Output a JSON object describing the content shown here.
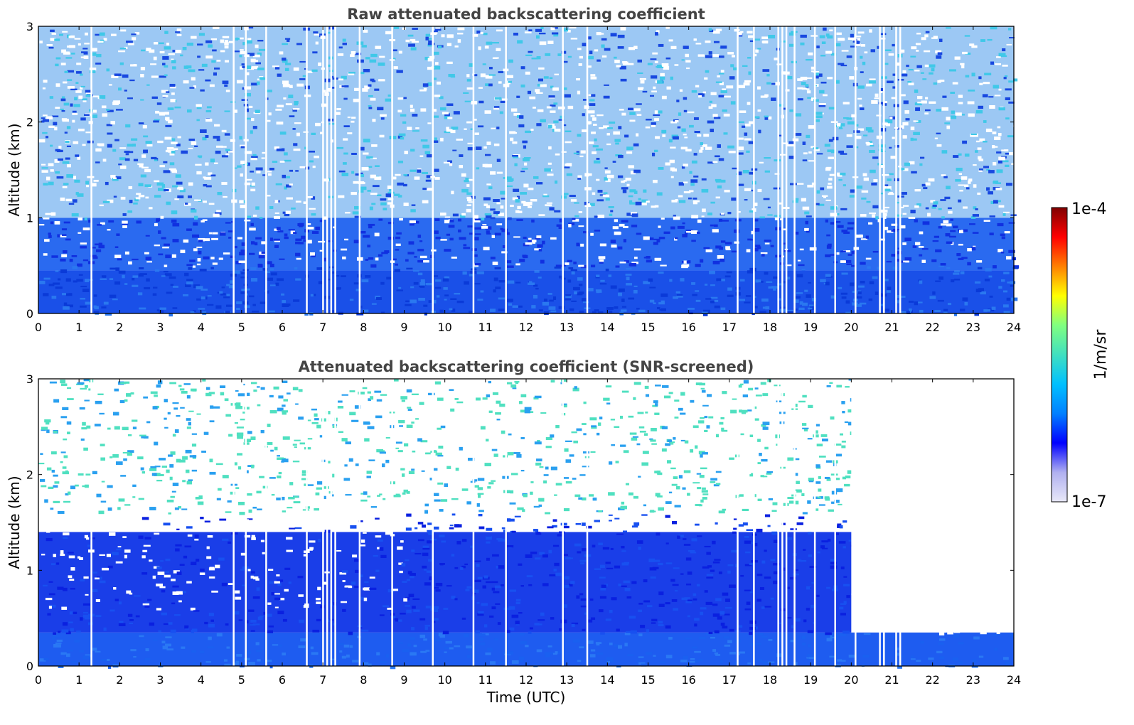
{
  "chart_data": [
    {
      "type": "heatmap",
      "title": "Raw attenuated backscattering coefficient",
      "xlabel": "",
      "ylabel": "Altitude (km)",
      "xlim": [
        0,
        24
      ],
      "ylim": [
        0,
        3
      ],
      "xticks": [
        "0",
        "1",
        "2",
        "3",
        "4",
        "5",
        "6",
        "7",
        "8",
        "9",
        "10",
        "11",
        "12",
        "13",
        "14",
        "15",
        "16",
        "17",
        "18",
        "19",
        "20",
        "21",
        "22",
        "23",
        "24"
      ],
      "yticks": [
        "0",
        "1",
        "2",
        "3"
      ],
      "layers": [
        {
          "name": "near-surface strong signal",
          "alt_km": [
            0,
            0.45
          ],
          "level": "dark blue"
        },
        {
          "name": "boundary layer",
          "alt_km": [
            0.45,
            1.0
          ],
          "level": "blue"
        },
        {
          "name": "noisy free troposphere",
          "alt_km": [
            1.0,
            3.0
          ],
          "level": "light blue / cyan noise"
        }
      ],
      "gap_times_utc": [
        1.3,
        4.8,
        5.1,
        5.6,
        6.6,
        7.0,
        7.1,
        7.2,
        7.3,
        7.9,
        8.7,
        9.7,
        10.7,
        11.5,
        12.9,
        13.5,
        17.2,
        17.6,
        18.2,
        18.3,
        18.4,
        18.6,
        19.1,
        19.6,
        20.1,
        20.7,
        20.8,
        21.1,
        21.2
      ]
    },
    {
      "type": "heatmap",
      "title": "Attenuated backscattering coefficient (SNR-screened)",
      "xlabel": "Time (UTC)",
      "ylabel": "Altitude (km)",
      "xlim": [
        0,
        24
      ],
      "ylim": [
        0,
        3
      ],
      "xticks": [
        "0",
        "1",
        "2",
        "3",
        "4",
        "5",
        "6",
        "7",
        "8",
        "9",
        "10",
        "11",
        "12",
        "13",
        "14",
        "15",
        "16",
        "17",
        "18",
        "19",
        "20",
        "21",
        "22",
        "23",
        "24"
      ],
      "yticks": [
        "0",
        "1",
        "2",
        "3"
      ],
      "layers": [
        {
          "name": "surface layer",
          "alt_km": [
            0,
            0.35
          ],
          "level": "blue"
        },
        {
          "name": "boundary layer",
          "alt_km": [
            0.35,
            1.4
          ],
          "level": "dark blue, white patches 0-9 UTC"
        },
        {
          "name": "screened noise",
          "alt_km": [
            1.4,
            3.0
          ],
          "level": "sparse cyan, screened after 20 UTC"
        }
      ],
      "screened_after_utc": 20
    }
  ],
  "colorbar": {
    "label": "1/m/sr",
    "max_label": "1e-4",
    "min_label": "1e-7",
    "range": [
      1e-07,
      0.0001
    ],
    "colormap": "jet",
    "colors": [
      "#e8e8f8",
      "#b0b0f0",
      "#0000ff",
      "#0080ff",
      "#00c0ff",
      "#40e0c0",
      "#80ff80",
      "#ffff00",
      "#ff8000",
      "#ff0000",
      "#800000"
    ]
  }
}
